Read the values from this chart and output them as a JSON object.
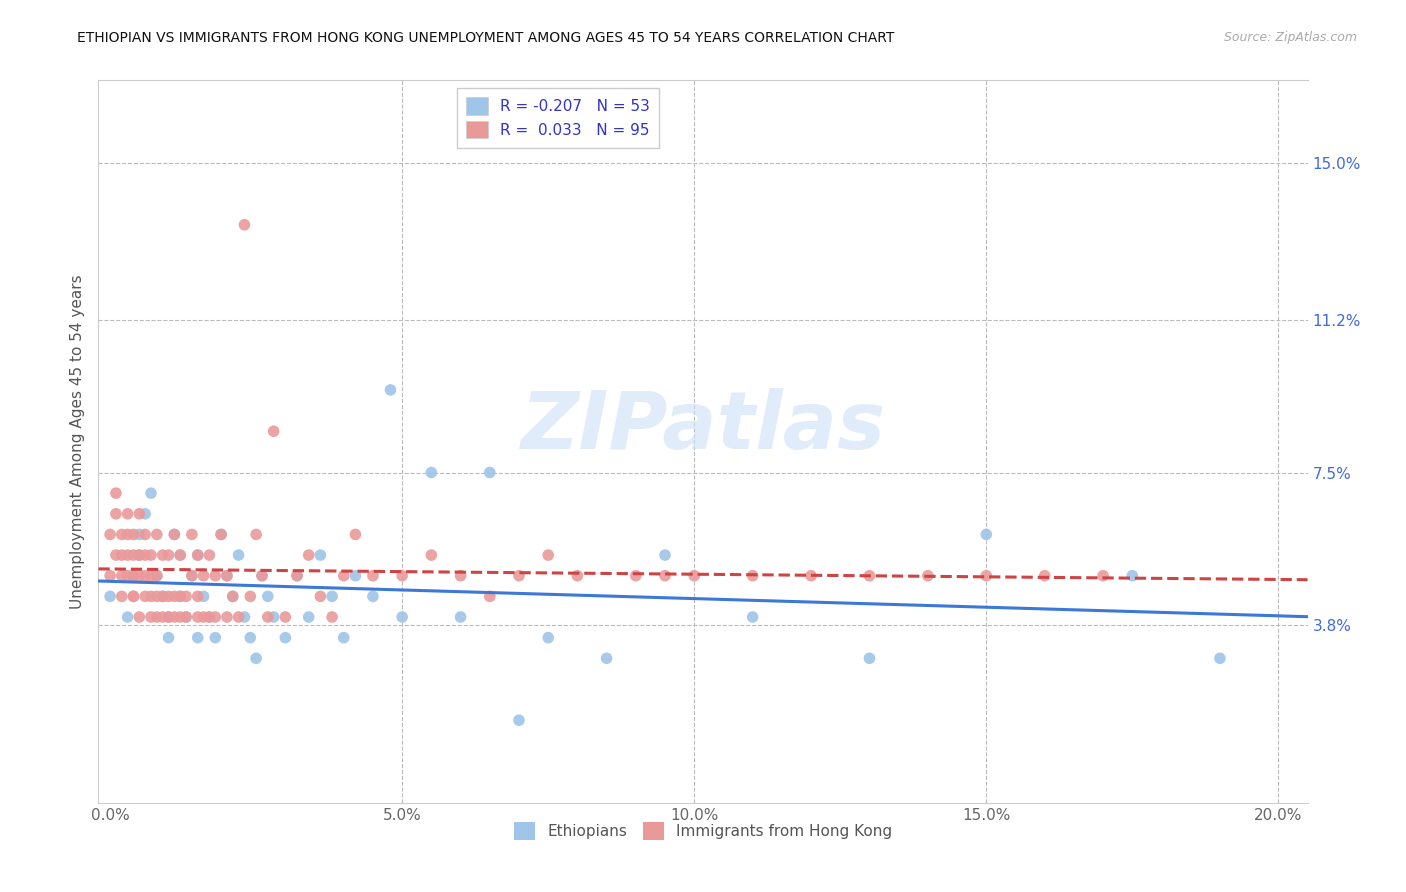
{
  "title": "ETHIOPIAN VS IMMIGRANTS FROM HONG KONG UNEMPLOYMENT AMONG AGES 45 TO 54 YEARS CORRELATION CHART",
  "source": "Source: ZipAtlas.com",
  "xlabel_ticks": [
    "0.0%",
    "5.0%",
    "10.0%",
    "15.0%",
    "20.0%"
  ],
  "xlabel_vals": [
    0.0,
    0.05,
    0.1,
    0.15,
    0.2
  ],
  "ylabel": "Unemployment Among Ages 45 to 54 years",
  "ylabel_ticks_right": [
    "15.0%",
    "11.2%",
    "7.5%",
    "3.8%"
  ],
  "ylabel_vals_right": [
    0.15,
    0.112,
    0.075,
    0.038
  ],
  "xlim": [
    -0.002,
    0.205
  ],
  "ylim": [
    -0.005,
    0.17
  ],
  "blue_color": "#9fc5e8",
  "pink_color": "#ea9999",
  "blue_line_color": "#3c78d8",
  "pink_line_color": "#cc4444",
  "R_blue": -0.207,
  "N_blue": 53,
  "R_pink": 0.033,
  "N_pink": 95,
  "watermark": "ZIPatlas",
  "ethiopians_x": [
    0.0,
    0.003,
    0.004,
    0.005,
    0.005,
    0.006,
    0.007,
    0.008,
    0.009,
    0.01,
    0.01,
    0.011,
    0.012,
    0.012,
    0.013,
    0.014,
    0.015,
    0.015,
    0.016,
    0.017,
    0.018,
    0.019,
    0.02,
    0.021,
    0.022,
    0.023,
    0.024,
    0.025,
    0.026,
    0.027,
    0.028,
    0.03,
    0.032,
    0.034,
    0.036,
    0.038,
    0.04,
    0.042,
    0.045,
    0.048,
    0.05,
    0.055,
    0.06,
    0.065,
    0.07,
    0.075,
    0.085,
    0.095,
    0.11,
    0.13,
    0.15,
    0.175,
    0.19
  ],
  "ethiopians_y": [
    0.045,
    0.04,
    0.05,
    0.055,
    0.06,
    0.065,
    0.07,
    0.05,
    0.045,
    0.04,
    0.035,
    0.06,
    0.055,
    0.045,
    0.04,
    0.05,
    0.035,
    0.055,
    0.045,
    0.04,
    0.035,
    0.06,
    0.05,
    0.045,
    0.055,
    0.04,
    0.035,
    0.03,
    0.05,
    0.045,
    0.04,
    0.035,
    0.05,
    0.04,
    0.055,
    0.045,
    0.035,
    0.05,
    0.045,
    0.095,
    0.04,
    0.075,
    0.04,
    0.075,
    0.015,
    0.035,
    0.03,
    0.055,
    0.04,
    0.03,
    0.06,
    0.05,
    0.03
  ],
  "hk_x": [
    0.0,
    0.0,
    0.001,
    0.001,
    0.001,
    0.002,
    0.002,
    0.002,
    0.002,
    0.003,
    0.003,
    0.003,
    0.003,
    0.004,
    0.004,
    0.004,
    0.004,
    0.004,
    0.005,
    0.005,
    0.005,
    0.005,
    0.006,
    0.006,
    0.006,
    0.006,
    0.007,
    0.007,
    0.007,
    0.007,
    0.008,
    0.008,
    0.008,
    0.008,
    0.009,
    0.009,
    0.009,
    0.01,
    0.01,
    0.01,
    0.011,
    0.011,
    0.011,
    0.012,
    0.012,
    0.012,
    0.013,
    0.013,
    0.014,
    0.014,
    0.015,
    0.015,
    0.015,
    0.016,
    0.016,
    0.017,
    0.017,
    0.018,
    0.018,
    0.019,
    0.02,
    0.02,
    0.021,
    0.022,
    0.023,
    0.024,
    0.025,
    0.026,
    0.027,
    0.028,
    0.03,
    0.032,
    0.034,
    0.036,
    0.038,
    0.04,
    0.042,
    0.045,
    0.05,
    0.055,
    0.06,
    0.065,
    0.07,
    0.075,
    0.08,
    0.09,
    0.095,
    0.1,
    0.11,
    0.12,
    0.13,
    0.14,
    0.15,
    0.16,
    0.17
  ],
  "hk_y": [
    0.05,
    0.06,
    0.055,
    0.065,
    0.07,
    0.045,
    0.05,
    0.055,
    0.06,
    0.05,
    0.055,
    0.06,
    0.065,
    0.045,
    0.05,
    0.055,
    0.06,
    0.045,
    0.04,
    0.05,
    0.055,
    0.065,
    0.045,
    0.05,
    0.055,
    0.06,
    0.04,
    0.045,
    0.05,
    0.055,
    0.04,
    0.045,
    0.05,
    0.06,
    0.04,
    0.045,
    0.055,
    0.04,
    0.045,
    0.055,
    0.04,
    0.045,
    0.06,
    0.04,
    0.045,
    0.055,
    0.04,
    0.045,
    0.05,
    0.06,
    0.04,
    0.045,
    0.055,
    0.04,
    0.05,
    0.04,
    0.055,
    0.04,
    0.05,
    0.06,
    0.04,
    0.05,
    0.045,
    0.04,
    0.135,
    0.045,
    0.06,
    0.05,
    0.04,
    0.085,
    0.04,
    0.05,
    0.055,
    0.045,
    0.04,
    0.05,
    0.06,
    0.05,
    0.05,
    0.055,
    0.05,
    0.045,
    0.05,
    0.055,
    0.05,
    0.05,
    0.05,
    0.05,
    0.05,
    0.05,
    0.05,
    0.05,
    0.05,
    0.05,
    0.05
  ]
}
